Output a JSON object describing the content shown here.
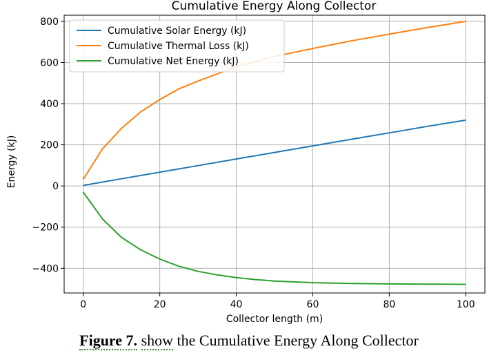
{
  "chart_data": {
    "type": "line",
    "title": "Cumulative Energy Along Collector",
    "xlabel": "Collector length (m)",
    "ylabel": "Energy (kJ)",
    "xlim": [
      -5,
      105
    ],
    "ylim": [
      -520,
      830
    ],
    "xticks": [
      0,
      20,
      40,
      60,
      80,
      100
    ],
    "yticks": [
      -400,
      -200,
      0,
      200,
      400,
      600,
      800
    ],
    "xtick_labels": [
      "0",
      "20",
      "40",
      "60",
      "80",
      "100"
    ],
    "ytick_labels": [
      "−400",
      "−200",
      "0",
      "200",
      "400",
      "600",
      "800"
    ],
    "grid": true,
    "legend_position": "upper-left",
    "series": [
      {
        "name": "Cumulative Solar Energy (kJ)",
        "color": "#1f77b4",
        "x": [
          0,
          10,
          20,
          30,
          40,
          50,
          60,
          70,
          80,
          90,
          100
        ],
        "y": [
          3,
          35,
          67,
          99,
          131,
          163,
          195,
          227,
          258,
          290,
          320
        ]
      },
      {
        "name": "Cumulative Thermal Loss (kJ)",
        "color": "#ff7f0e",
        "x": [
          0,
          5,
          10,
          15,
          20,
          25,
          30,
          35,
          40,
          45,
          50,
          60,
          70,
          80,
          90,
          100
        ],
        "y": [
          32,
          180,
          280,
          360,
          420,
          472,
          510,
          545,
          578,
          605,
          630,
          668,
          705,
          738,
          770,
          800
        ]
      },
      {
        "name": "Cumulative Net Energy (kJ)",
        "color": "#2ca02c",
        "x": [
          0,
          5,
          10,
          15,
          20,
          25,
          30,
          35,
          40,
          45,
          50,
          60,
          70,
          80,
          90,
          100
        ],
        "y": [
          -30,
          -160,
          -250,
          -310,
          -355,
          -390,
          -415,
          -432,
          -445,
          -455,
          -462,
          -470,
          -474,
          -476,
          -477,
          -478
        ]
      }
    ]
  },
  "caption": {
    "figure_label": "Figure 7.",
    "word_show": "show",
    "rest": " the Cumulative Energy Along Collector"
  }
}
